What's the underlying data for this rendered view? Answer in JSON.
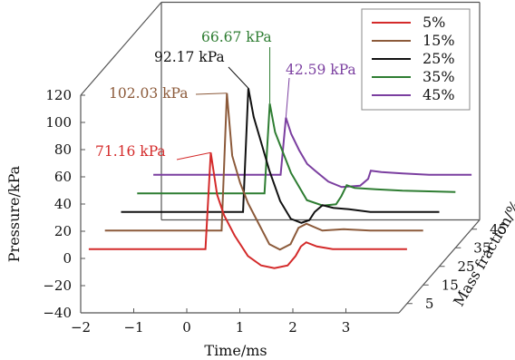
{
  "chart_data": {
    "type": "line",
    "title": "",
    "xlabel": "Time/ms",
    "ylabel": "Pressure/kPa",
    "zlabel": "Mass fraction/%",
    "xlim": [
      -2,
      4
    ],
    "ylim": [
      -40,
      120
    ],
    "x_ticks": [
      "−2",
      "−1",
      "0",
      "1",
      "2",
      "3"
    ],
    "y_ticks": [
      "−40",
      "−20",
      "0",
      "20",
      "40",
      "60",
      "80",
      "100",
      "120"
    ],
    "z_ticks": [
      "5",
      "15",
      "25",
      "35",
      "45"
    ],
    "legend_position": "top-right",
    "series": [
      {
        "name": "5%",
        "color": "#d42a2a",
        "mass_fraction": 5,
        "peak_label": "71.16 kPa",
        "points": [
          [
            -2,
            0
          ],
          [
            0.2,
            0
          ],
          [
            0.3,
            71
          ],
          [
            0.42,
            40
          ],
          [
            0.55,
            25
          ],
          [
            0.75,
            10
          ],
          [
            1.0,
            -5
          ],
          [
            1.25,
            -12
          ],
          [
            1.5,
            -14
          ],
          [
            1.75,
            -12
          ],
          [
            1.9,
            -5
          ],
          [
            2.0,
            2
          ],
          [
            2.1,
            5
          ],
          [
            2.3,
            2
          ],
          [
            2.6,
            0
          ],
          [
            3.0,
            0
          ],
          [
            3.4,
            0
          ],
          [
            4.0,
            0
          ]
        ]
      },
      {
        "name": "15%",
        "color": "#8c5a3a",
        "mass_fraction": 15,
        "peak_label": "102.03 kPa",
        "points": [
          [
            -2,
            0
          ],
          [
            0.2,
            0
          ],
          [
            0.3,
            101
          ],
          [
            0.4,
            55
          ],
          [
            0.55,
            35
          ],
          [
            0.7,
            20
          ],
          [
            0.9,
            5
          ],
          [
            1.1,
            -10
          ],
          [
            1.3,
            -14
          ],
          [
            1.5,
            -10
          ],
          [
            1.65,
            2
          ],
          [
            1.8,
            5
          ],
          [
            2.1,
            0
          ],
          [
            2.5,
            1
          ],
          [
            3.0,
            0
          ],
          [
            4.0,
            0
          ]
        ]
      },
      {
        "name": "25%",
        "color": "#111111",
        "mass_fraction": 25,
        "peak_label": "92.17 kPa",
        "points": [
          [
            -2,
            0
          ],
          [
            0.3,
            0
          ],
          [
            0.4,
            91
          ],
          [
            0.5,
            70
          ],
          [
            0.65,
            50
          ],
          [
            0.8,
            30
          ],
          [
            1.0,
            8
          ],
          [
            1.2,
            -5
          ],
          [
            1.4,
            -8
          ],
          [
            1.55,
            -6
          ],
          [
            1.65,
            0
          ],
          [
            1.8,
            5
          ],
          [
            2.0,
            3
          ],
          [
            2.3,
            2
          ],
          [
            2.7,
            0
          ],
          [
            3.2,
            0
          ],
          [
            4.0,
            0
          ]
        ]
      },
      {
        "name": "35%",
        "color": "#2e7d32",
        "mass_fraction": 35,
        "peak_label": "66.67 kPa",
        "points": [
          [
            -2,
            0
          ],
          [
            0.4,
            0
          ],
          [
            0.5,
            66
          ],
          [
            0.6,
            45
          ],
          [
            0.75,
            30
          ],
          [
            0.9,
            15
          ],
          [
            1.05,
            5
          ],
          [
            1.2,
            -5
          ],
          [
            1.5,
            -9
          ],
          [
            1.75,
            -8
          ],
          [
            1.85,
            -2
          ],
          [
            1.95,
            6
          ],
          [
            2.1,
            4
          ],
          [
            2.5,
            3
          ],
          [
            3.0,
            2
          ],
          [
            4.0,
            1
          ]
        ]
      },
      {
        "name": "45%",
        "color": "#7b3fa0",
        "mass_fraction": 45,
        "peak_label": "42.59 kPa",
        "points": [
          [
            -2,
            0
          ],
          [
            0.4,
            0
          ],
          [
            0.5,
            42
          ],
          [
            0.6,
            30
          ],
          [
            0.75,
            18
          ],
          [
            0.9,
            8
          ],
          [
            1.05,
            3
          ],
          [
            1.3,
            -5
          ],
          [
            1.55,
            -9
          ],
          [
            1.9,
            -8
          ],
          [
            2.05,
            -3
          ],
          [
            2.1,
            3
          ],
          [
            2.3,
            2
          ],
          [
            2.7,
            1
          ],
          [
            3.2,
            0
          ],
          [
            4.0,
            0
          ]
        ]
      }
    ]
  }
}
